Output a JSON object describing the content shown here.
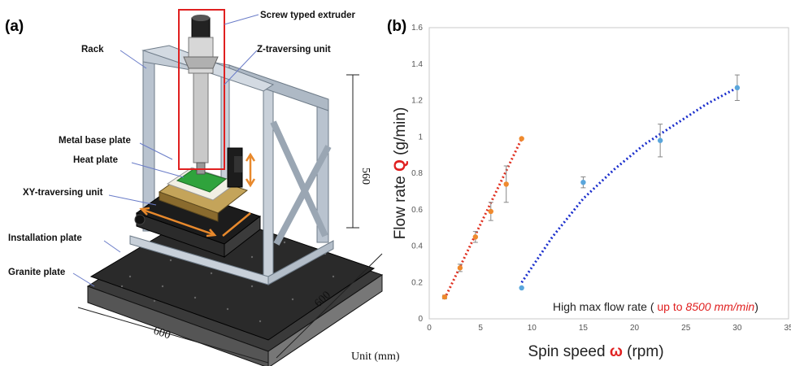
{
  "panel_a": {
    "label": "(a)",
    "callouts": {
      "screw_extruder": "Screw typed extruder",
      "rack": "Rack",
      "z_unit": "Z-traversing unit",
      "metal_base": "Metal base plate",
      "heat_plate": "Heat plate",
      "xy_unit": "XY-traversing unit",
      "installation_plate": "Installation plate",
      "granite_plate": "Granite plate"
    },
    "dims": {
      "height": "560",
      "width": "600",
      "depth": "600",
      "unit": "Unit (mm)"
    },
    "colors": {
      "frame": "#b9c3cf",
      "granite": "#2a2a2a",
      "heat_plate": "#2fa33c",
      "arrow": "#e8892c",
      "highlight": "#e02020"
    }
  },
  "panel_b": {
    "label": "(b)",
    "chart_data": {
      "type": "scatter",
      "xlabel_prefix": "Spin speed ",
      "xlabel_symbol": "ω",
      "xlabel_suffix": " (rpm)",
      "ylabel_prefix": "Flow rate ",
      "ylabel_symbol": "Q",
      "ylabel_suffix": " (g/min)",
      "xlim": [
        0,
        35
      ],
      "ylim": [
        0,
        1.6
      ],
      "xticks": [
        "0",
        "5",
        "10",
        "15",
        "20",
        "25",
        "30",
        "35"
      ],
      "yticks": [
        "0",
        "0.2",
        "0.4",
        "0.6",
        "0.8",
        "1",
        "1.2",
        "1.4",
        "1.6"
      ],
      "grid": false,
      "series": [
        {
          "color": "#ef8a2e",
          "trend_color": "#e03020",
          "points": [
            {
              "x": 1.5,
              "y": 0.12,
              "err": 0.01
            },
            {
              "x": 3,
              "y": 0.28,
              "err": 0.02
            },
            {
              "x": 4.5,
              "y": 0.45,
              "err": 0.03
            },
            {
              "x": 6,
              "y": 0.59,
              "err": 0.05
            },
            {
              "x": 7.5,
              "y": 0.74,
              "err": 0.1
            },
            {
              "x": 9,
              "y": 0.99,
              "err": 0
            }
          ],
          "trend": [
            [
              1.5,
              0.11
            ],
            [
              9,
              0.99
            ]
          ]
        },
        {
          "color": "#5aa6dc",
          "trend_color": "#1a2ecc",
          "points": [
            {
              "x": 9,
              "y": 0.17,
              "err": 0
            },
            {
              "x": 15,
              "y": 0.75,
              "err": 0.03
            },
            {
              "x": 22.5,
              "y": 0.98,
              "err": 0.09
            },
            {
              "x": 30,
              "y": 1.27,
              "err": 0.07
            }
          ],
          "trend": [
            [
              9,
              0.2
            ],
            [
              12,
              0.45
            ],
            [
              15,
              0.66
            ],
            [
              18,
              0.82
            ],
            [
              21,
              0.96
            ],
            [
              24,
              1.07
            ],
            [
              27,
              1.18
            ],
            [
              30,
              1.27
            ]
          ]
        }
      ],
      "annotation_prefix": "High max flow rate ( ",
      "annotation_highlight_a": "up to ",
      "annotation_highlight_b": "8500 mm/min",
      "annotation_suffix": ")",
      "annotation_color": "#e02020"
    }
  }
}
